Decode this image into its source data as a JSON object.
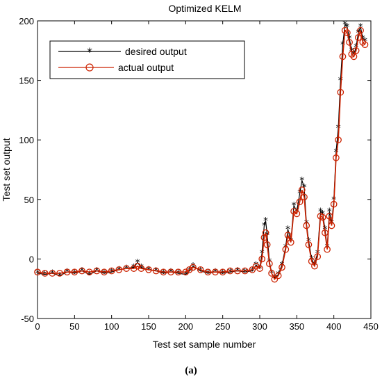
{
  "chart_data": {
    "type": "line",
    "title": "Optimized KELM",
    "xlabel": "Test set sample number",
    "ylabel": "Test set output",
    "xlim": [
      0,
      450
    ],
    "ylim": [
      -50,
      200
    ],
    "xticks": [
      0,
      50,
      100,
      150,
      200,
      250,
      300,
      350,
      400,
      450
    ],
    "yticks": [
      -50,
      0,
      50,
      100,
      150,
      200
    ],
    "xtick_labels": [
      "0",
      "50",
      "100",
      "150",
      "200",
      "250",
      "300",
      "350",
      "400",
      "450"
    ],
    "ytick_labels": [
      "-50",
      "0",
      "50",
      "100",
      "150",
      "200"
    ],
    "grid": false,
    "legend_position": "top-left",
    "caption": "(a)",
    "series": [
      {
        "name": "desired output",
        "color": "#000000",
        "marker": "star",
        "x": [
          0,
          10,
          20,
          30,
          40,
          50,
          60,
          70,
          80,
          90,
          100,
          110,
          120,
          130,
          135,
          140,
          150,
          160,
          170,
          180,
          190,
          200,
          205,
          210,
          220,
          230,
          240,
          250,
          260,
          270,
          280,
          290,
          295,
          300,
          303,
          306,
          308,
          310,
          313,
          316,
          320,
          325,
          330,
          335,
          338,
          342,
          346,
          350,
          354,
          357,
          360,
          363,
          366,
          370,
          374,
          378,
          382,
          385,
          388,
          391,
          394,
          397,
          400,
          403,
          406,
          409,
          412,
          415,
          418,
          421,
          424,
          427,
          430,
          433,
          436,
          439,
          442
        ],
        "y": [
          -12,
          -13,
          -12,
          -14,
          -11,
          -12,
          -10,
          -13,
          -10,
          -12,
          -11,
          -9,
          -8,
          -7,
          -3,
          -7,
          -9,
          -10,
          -12,
          -11,
          -12,
          -13,
          -10,
          -6,
          -10,
          -12,
          -11,
          -12,
          -11,
          -10,
          -11,
          -10,
          -5,
          -8,
          5,
          28,
          32,
          20,
          -2,
          -12,
          -16,
          -13,
          -5,
          10,
          25,
          15,
          45,
          40,
          55,
          66,
          60,
          30,
          15,
          0,
          -5,
          5,
          40,
          38,
          25,
          10,
          40,
          30,
          50,
          90,
          110,
          150,
          180,
          197,
          195,
          185,
          175,
          172,
          178,
          190,
          195,
          185,
          183
        ]
      },
      {
        "name": "actual output",
        "color": "#cc2200",
        "marker": "circle",
        "x": [
          0,
          10,
          20,
          30,
          40,
          50,
          60,
          70,
          80,
          90,
          100,
          110,
          120,
          130,
          135,
          140,
          150,
          160,
          170,
          180,
          190,
          200,
          205,
          210,
          220,
          230,
          240,
          250,
          260,
          270,
          280,
          290,
          295,
          300,
          303,
          306,
          308,
          310,
          313,
          316,
          320,
          325,
          330,
          335,
          338,
          342,
          346,
          350,
          354,
          357,
          360,
          363,
          366,
          370,
          374,
          378,
          382,
          385,
          388,
          391,
          394,
          397,
          400,
          403,
          406,
          409,
          412,
          415,
          418,
          421,
          424,
          427,
          430,
          433,
          436,
          439,
          442
        ],
        "y": [
          -11,
          -12,
          -12,
          -12,
          -11,
          -11,
          -10,
          -11,
          -10,
          -11,
          -10,
          -9,
          -8,
          -8,
          -6,
          -8,
          -9,
          -10,
          -11,
          -11,
          -11,
          -11,
          -9,
          -7,
          -9,
          -11,
          -11,
          -11,
          -10,
          -10,
          -10,
          -9,
          -6,
          -8,
          0,
          18,
          22,
          12,
          -4,
          -12,
          -17,
          -14,
          -7,
          8,
          20,
          14,
          40,
          38,
          48,
          58,
          52,
          28,
          12,
          -2,
          -6,
          2,
          36,
          35,
          22,
          8,
          36,
          28,
          46,
          85,
          100,
          140,
          170,
          192,
          190,
          182,
          172,
          170,
          175,
          186,
          192,
          182,
          180
        ]
      }
    ]
  }
}
